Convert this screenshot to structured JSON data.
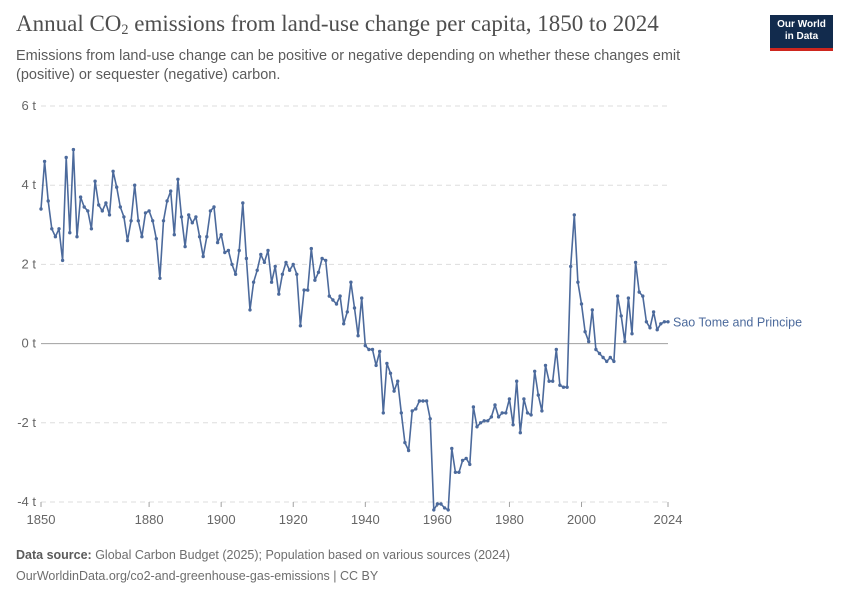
{
  "header": {
    "title_pre": "Annual CO",
    "title_sub": "2",
    "title_post": " emissions from land-use change per capita, 1850 to 2024",
    "subtitle": "Emissions from land-use change can be positive or negative depending on whether these changes emit (positive) or sequester (negative) carbon."
  },
  "logo": {
    "line1": "Our World",
    "line2": "in Data"
  },
  "footer": {
    "source_label": "Data source:",
    "source_text": " Global Carbon Budget (2025); Population based on various sources (2024)",
    "url": "OurWorldinData.org/co2-and-greenhouse-gas-emissions | CC BY"
  },
  "colors": {
    "series": "#4c6a9c",
    "grid": "#dddddd",
    "zero": "#a1a1a1",
    "axis_text": "#666666"
  },
  "chart_data": {
    "type": "line",
    "title": "Annual CO₂ emissions from land-use change per capita, 1850 to 2024",
    "xlabel": "",
    "ylabel": "",
    "xlim": [
      1850,
      2024
    ],
    "ylim": [
      -4,
      6
    ],
    "y_ticks": [
      6,
      4,
      2,
      0,
      -2,
      -4
    ],
    "y_tick_labels": [
      "6 t",
      "4 t",
      "2 t",
      "0 t",
      "-2 t",
      "-4 t"
    ],
    "x_ticks": [
      1850,
      1880,
      1900,
      1920,
      1940,
      1960,
      1980,
      2000,
      2024
    ],
    "x_tick_labels": [
      "1850",
      "1880",
      "1900",
      "1920",
      "1940",
      "1960",
      "1980",
      "2000",
      "2024"
    ],
    "grid": true,
    "series": [
      {
        "name": "Sao Tome and Principe",
        "x_start": 1850,
        "values": [
          3.4,
          4.6,
          3.6,
          2.9,
          2.7,
          2.9,
          2.1,
          4.7,
          2.8,
          4.9,
          2.7,
          3.7,
          3.45,
          3.35,
          2.9,
          4.1,
          3.5,
          3.35,
          3.55,
          3.25,
          4.35,
          3.95,
          3.45,
          3.2,
          2.6,
          3.1,
          4.0,
          3.1,
          2.7,
          3.3,
          3.35,
          3.1,
          2.65,
          1.65,
          3.1,
          3.6,
          3.85,
          2.75,
          4.15,
          3.2,
          2.45,
          3.25,
          3.05,
          3.2,
          2.7,
          2.2,
          2.7,
          3.35,
          3.45,
          2.55,
          2.75,
          2.3,
          2.35,
          2.0,
          1.75,
          2.35,
          3.55,
          2.15,
          0.85,
          1.55,
          1.85,
          2.25,
          2.05,
          2.35,
          1.55,
          1.95,
          1.25,
          1.75,
          2.05,
          1.85,
          2.0,
          1.75,
          0.45,
          1.35,
          1.35,
          2.4,
          1.6,
          1.8,
          2.15,
          2.1,
          1.2,
          1.1,
          1.0,
          1.2,
          0.5,
          0.8,
          1.55,
          0.9,
          0.2,
          1.15,
          -0.05,
          -0.15,
          -0.15,
          -0.55,
          -0.2,
          -1.75,
          -0.5,
          -0.75,
          -1.2,
          -0.95,
          -1.75,
          -2.5,
          -2.7,
          -1.7,
          -1.65,
          -1.45,
          -1.45,
          -1.45,
          -1.9,
          -4.2,
          -4.05,
          -4.05,
          -4.15,
          -4.2,
          -2.65,
          -3.25,
          -3.25,
          -2.95,
          -2.9,
          -3.05,
          -1.6,
          -2.1,
          -2.0,
          -1.95,
          -1.95,
          -1.85,
          -1.55,
          -1.85,
          -1.75,
          -1.75,
          -1.4,
          -2.05,
          -0.95,
          -2.25,
          -1.4,
          -1.75,
          -1.8,
          -0.7,
          -1.3,
          -1.7,
          -0.55,
          -0.95,
          -0.95,
          -0.15,
          -1.05,
          -1.1,
          -1.1,
          1.95,
          3.25,
          1.55,
          1.0,
          0.3,
          0.05,
          0.85,
          -0.15,
          -0.25,
          -0.35,
          -0.45,
          -0.35,
          -0.45,
          1.2,
          0.7,
          0.05,
          1.15,
          0.25,
          2.05,
          1.3,
          1.2,
          0.55,
          0.4,
          0.8,
          0.35,
          0.5,
          0.55,
          0.55
        ]
      }
    ]
  }
}
